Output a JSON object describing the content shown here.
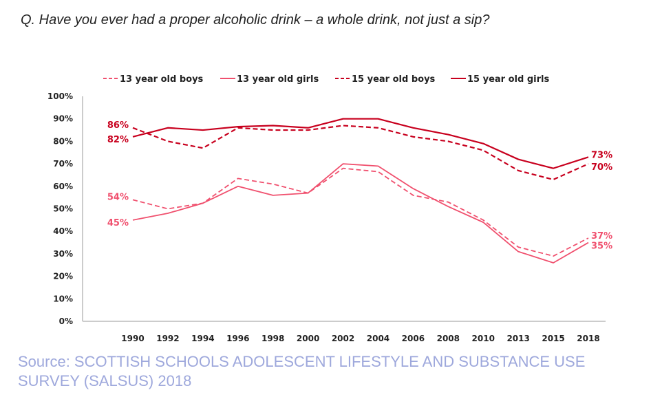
{
  "question": "Q. Have you ever had a proper alcoholic drink – a whole drink, not just a sip?",
  "source": "Source: SCOTTISH SCHOOLS ADOLESCENT LIFESTYLE AND SUBSTANCE USE SURVEY (SALSUS) 2018",
  "chart_data": {
    "type": "line",
    "title": "",
    "xlabel": "",
    "ylabel": "",
    "ylim": [
      0,
      100
    ],
    "yticks": [
      "0%",
      "10%",
      "20%",
      "30%",
      "40%",
      "50%",
      "60%",
      "70%",
      "80%",
      "90%",
      "100%"
    ],
    "categories": [
      "1990",
      "1992",
      "1994",
      "1996",
      "1998",
      "2000",
      "2002",
      "2004",
      "2006",
      "2008",
      "2010",
      "2013",
      "2015",
      "2018"
    ],
    "legend_position": "top",
    "grid": false,
    "series": [
      {
        "name": "13 year old boys",
        "style": "dashed",
        "color": "#f0506e",
        "values": [
          54,
          50,
          52.5,
          63.5,
          61,
          57,
          68,
          66.5,
          56,
          53,
          45,
          33,
          29,
          37
        ],
        "labels": {
          "start": "54%",
          "end": "37%"
        }
      },
      {
        "name": "13 year old girls",
        "style": "solid",
        "color": "#f0506e",
        "values": [
          45,
          48,
          52.5,
          60,
          56,
          57,
          70,
          69,
          59,
          51,
          44,
          31,
          26,
          35
        ],
        "labels": {
          "start": "45%",
          "end": "35%"
        }
      },
      {
        "name": "15 year old boys",
        "style": "dashed",
        "color": "#c8001e",
        "values": [
          86,
          80,
          77,
          86,
          85,
          85,
          87,
          86,
          82,
          80,
          76,
          67,
          63,
          70
        ],
        "labels": {
          "start": "86%",
          "end": "70%"
        }
      },
      {
        "name": "15 year old girls",
        "style": "solid",
        "color": "#c8001e",
        "values": [
          82,
          86,
          85,
          86.5,
          87,
          86,
          90,
          90,
          86,
          83,
          79,
          72,
          68,
          73
        ],
        "labels": {
          "start": "82%",
          "end": "73%"
        }
      }
    ]
  }
}
